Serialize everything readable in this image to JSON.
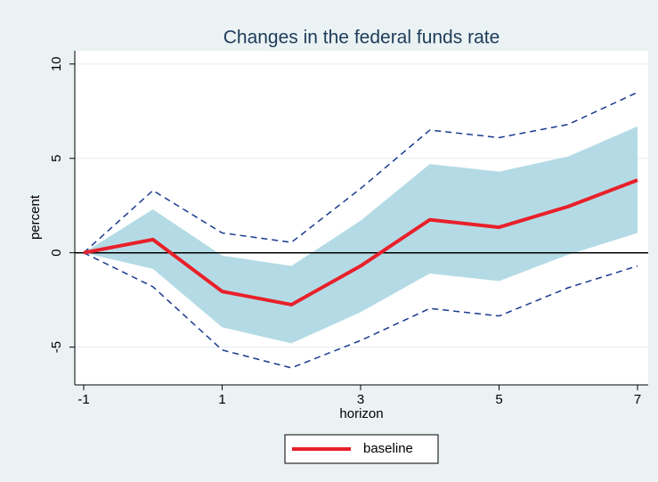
{
  "chart_data": {
    "type": "line",
    "title": "Changes in the federal funds rate",
    "xlabel": "horizon",
    "ylabel": "percent",
    "x": [
      -1,
      0,
      1,
      2,
      3,
      4,
      5,
      6,
      7
    ],
    "xlim": [
      -1,
      7
    ],
    "xticks": [
      -1,
      1,
      3,
      5,
      7
    ],
    "ylim": [
      -7,
      10.7
    ],
    "yticks": [
      -5,
      0,
      5,
      10
    ],
    "grid": true,
    "yline": 0,
    "series": [
      {
        "name": "baseline",
        "color": "#e8202a",
        "values": [
          0,
          0.7,
          -2.05,
          -2.75,
          -0.7,
          1.75,
          1.35,
          2.45,
          3.85
        ]
      }
    ],
    "band": {
      "color": "#b4dbe5",
      "upper": [
        0,
        2.3,
        -0.15,
        -0.7,
        1.7,
        4.7,
        4.3,
        5.1,
        6.7
      ],
      "lower": [
        0,
        -0.85,
        -3.95,
        -4.8,
        -3.15,
        -1.1,
        -1.5,
        -0.1,
        1.05
      ]
    },
    "bounds": {
      "color": "#1a3a8f",
      "upper": [
        0,
        3.3,
        1.05,
        0.55,
        3.4,
        6.5,
        6.1,
        6.8,
        8.5
      ],
      "lower": [
        0,
        -1.8,
        -5.15,
        -6.1,
        -4.65,
        -2.95,
        -3.35,
        -1.85,
        -0.7
      ]
    },
    "legend": "bottom"
  }
}
